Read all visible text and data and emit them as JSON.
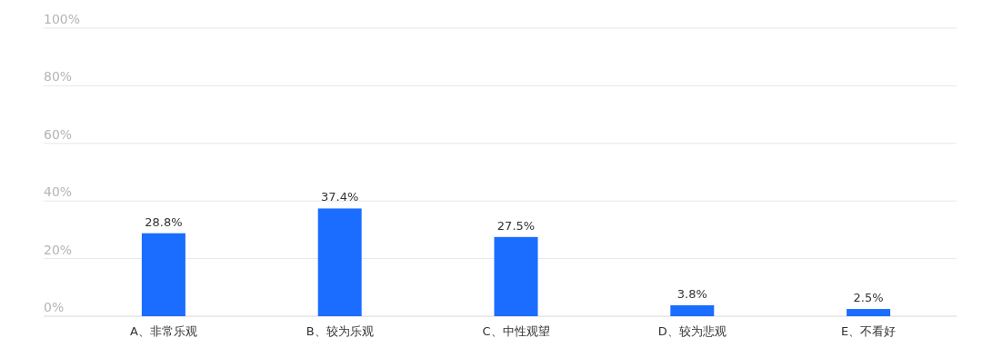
{
  "chart_data": {
    "type": "bar",
    "categories": [
      "A、非常乐观",
      "B、较为乐观",
      "C、中性观望",
      "D、较为悲观",
      "E、不看好"
    ],
    "values": [
      28.8,
      37.4,
      27.5,
      3.8,
      2.5
    ],
    "value_labels": [
      "28.8%",
      "37.4%",
      "27.5%",
      "3.8%",
      "2.5%"
    ],
    "color": "#1a6dff",
    "ylim": [
      0,
      100
    ],
    "yticks": [
      {
        "value": 0,
        "label": "0%"
      },
      {
        "value": 20,
        "label": "20%"
      },
      {
        "value": 40,
        "label": "40%"
      },
      {
        "value": 60,
        "label": "60%"
      },
      {
        "value": 80,
        "label": "80%"
      },
      {
        "value": 100,
        "label": "100%"
      }
    ],
    "grid": "y"
  }
}
